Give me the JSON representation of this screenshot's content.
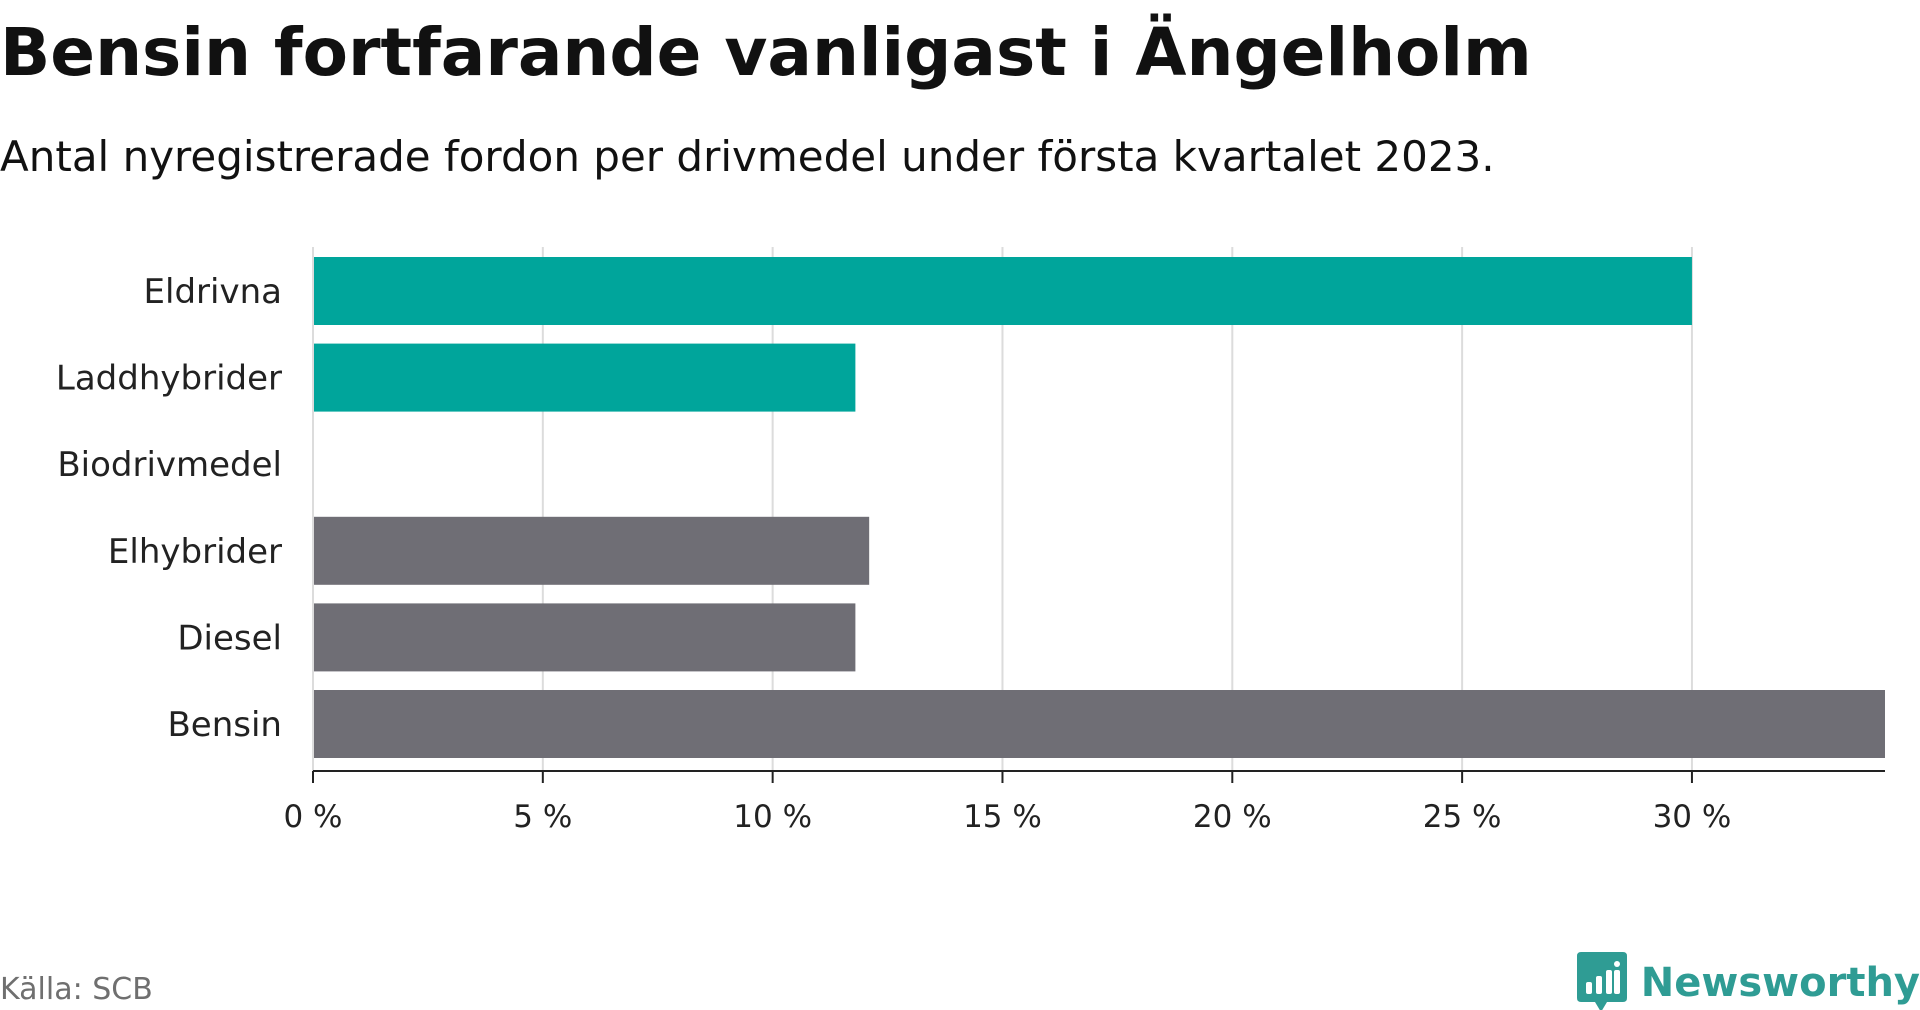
{
  "title": "Bensin fortfarande vanligast i Ängelholm",
  "subtitle": "Antal nyregistrerade fordon per drivmedel under första kvartalet 2023.",
  "source": "Källa: SCB",
  "brand": {
    "name": "Newsworthy",
    "icon": "bar-chart-speech-bubble-icon",
    "color": "#2f9c94"
  },
  "chart_data": {
    "type": "bar",
    "orientation": "horizontal",
    "title": "Bensin fortfarande vanligast i Ängelholm",
    "subtitle": "Antal nyregistrerade fordon per drivmedel under första kvartalet 2023.",
    "categories": [
      "Eldrivna",
      "Laddhybrider",
      "Biodrivmedel",
      "Elhybrider",
      "Diesel",
      "Bensin"
    ],
    "values": [
      30.0,
      11.8,
      0,
      12.1,
      11.8,
      34.2
    ],
    "colors": [
      "#00a59b",
      "#00a59b",
      "#00a59b",
      "#6f6e75",
      "#6f6e75",
      "#6f6e75"
    ],
    "unit": "%",
    "xlim": [
      0,
      34.2
    ],
    "xticks": [
      0,
      5,
      10,
      15,
      20,
      25,
      30
    ],
    "xtick_labels": [
      "0 %",
      "5 %",
      "10 %",
      "15 %",
      "20 %",
      "25 %",
      "30 %"
    ],
    "grid": true,
    "legend": "none",
    "xlabel": "",
    "ylabel": ""
  }
}
